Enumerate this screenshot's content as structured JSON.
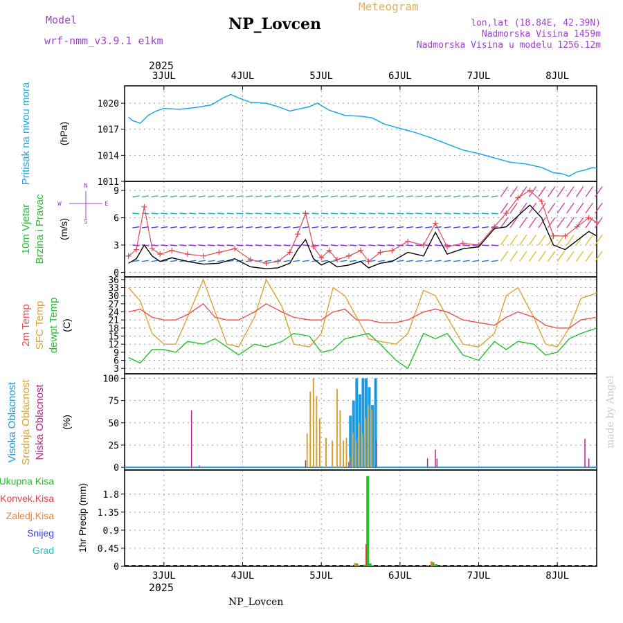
{
  "header": {
    "model_label": "Model",
    "model_name": "wrf-nmm_v3.9.1 e1km",
    "title": "NP_Lovcen",
    "subtitle": "Meteogram",
    "lonlat": "lon,lat (18.84E, 42.39N)",
    "elevation": "Nadmorska Visina 1459m",
    "model_elevation": "Nadmorska Visina u modelu 1256.12m",
    "footer": "NP_Lovcen",
    "watermark": "made by Angel"
  },
  "colors": {
    "pressure": "#1aa7e6",
    "wind_speed": "#000000",
    "wind_max": "#e0474f",
    "temp2m": "#e8504c",
    "sfc_temp": "#e0a030",
    "dewpt": "#22c02a",
    "cloud_high": "#1a9ae0",
    "cloud_mid": "#d8a030",
    "cloud_low": "#c0208a",
    "precip_total": "#22c02a",
    "precip_conv": "#e84040",
    "precip_frz": "#f08030",
    "snow": "#4040e0",
    "hail": "#20c0c0",
    "label_purple": "#a040d0",
    "label_orange": "#e0b060"
  },
  "chart_data": [
    {
      "type": "line",
      "panel": "pressure",
      "ylabel_line1": "Pritisak na nivou mora",
      "ylabel_line2": "(hPa)",
      "ylim": [
        1011,
        1022
      ],
      "yticks": [
        1011,
        1014,
        1017,
        1020
      ],
      "grid": true,
      "x_days": [
        2.55,
        2.6,
        2.7,
        2.8,
        2.9,
        3.0,
        3.2,
        3.4,
        3.6,
        3.75,
        3.85,
        3.95,
        4.1,
        4.3,
        4.45,
        4.6,
        4.75,
        4.85,
        4.95,
        5.1,
        5.3,
        5.5,
        5.65,
        5.8,
        6.0,
        6.2,
        6.4,
        6.6,
        6.8,
        7.0,
        7.2,
        7.4,
        7.6,
        7.8,
        7.95,
        8.05,
        8.15,
        8.25,
        8.35,
        8.45,
        8.5
      ],
      "series": [
        {
          "values": [
            1018.4,
            1018.0,
            1017.7,
            1018.6,
            1019.1,
            1019.4,
            1019.3,
            1019.5,
            1019.8,
            1020.6,
            1021.0,
            1020.6,
            1020.1,
            1020.0,
            1019.6,
            1019.1,
            1019.4,
            1019.6,
            1020.0,
            1019.2,
            1018.6,
            1018.5,
            1018.3,
            1017.6,
            1017.1,
            1016.6,
            1016.0,
            1015.3,
            1014.6,
            1014.2,
            1013.7,
            1013.2,
            1013.0,
            1012.6,
            1012.0,
            1011.9,
            1011.6,
            1012.1,
            1012.3,
            1012.6,
            1012.5
          ]
        }
      ]
    },
    {
      "type": "line",
      "panel": "wind",
      "ylabel_line1": "10m Vjetar",
      "ylabel_line2": "Brzina i Pravac",
      "unit": "(m/s)",
      "compass": {
        "n": "N",
        "w": "W",
        "e": "E",
        "s": "S"
      },
      "ylim": [
        -0.5,
        10
      ],
      "yticks": [
        0,
        3,
        6,
        9
      ],
      "grid": true,
      "x_days": [
        2.55,
        2.65,
        2.75,
        2.85,
        2.95,
        3.1,
        3.3,
        3.5,
        3.7,
        3.9,
        4.1,
        4.3,
        4.45,
        4.6,
        4.7,
        4.8,
        4.9,
        5.0,
        5.1,
        5.2,
        5.35,
        5.5,
        5.6,
        5.75,
        5.9,
        6.1,
        6.3,
        6.45,
        6.6,
        6.8,
        7.0,
        7.2,
        7.35,
        7.5,
        7.65,
        7.8,
        7.95,
        8.1,
        8.25,
        8.4,
        8.5
      ],
      "series": [
        {
          "name": "speed",
          "values": [
            1.0,
            1.5,
            3.0,
            1.8,
            1.2,
            1.6,
            1.2,
            0.9,
            1.0,
            1.5,
            0.6,
            0.4,
            0.5,
            1.0,
            2.5,
            3.6,
            1.5,
            0.8,
            1.2,
            0.6,
            0.8,
            1.2,
            0.5,
            1.0,
            1.2,
            2.2,
            1.8,
            4.4,
            2.0,
            2.6,
            2.8,
            4.8,
            5.0,
            6.2,
            7.4,
            6.0,
            3.0,
            2.5,
            3.5,
            4.5,
            4.0
          ]
        },
        {
          "name": "max",
          "values": [
            1.8,
            2.5,
            7.2,
            2.6,
            2.0,
            2.4,
            2.0,
            1.8,
            2.2,
            2.6,
            1.4,
            1.0,
            1.2,
            2.2,
            4.2,
            6.5,
            2.8,
            1.6,
            2.4,
            1.4,
            1.8,
            2.4,
            1.2,
            2.2,
            2.4,
            3.4,
            3.0,
            5.4,
            2.8,
            3.2,
            3.0,
            5.0,
            6.5,
            8.2,
            9.0,
            7.8,
            4.0,
            4.0,
            5.0,
            6.0,
            5.5
          ]
        }
      ]
    },
    {
      "type": "line",
      "panel": "temperature",
      "ylabel_line1": "2m Temp",
      "ylabel_line2": "SFC Temp",
      "ylabel_line3": "dewpt Temp",
      "unit": "(C)",
      "ylim": [
        1,
        37
      ],
      "yticks": [
        3,
        6,
        9,
        12,
        15,
        18,
        21,
        24,
        27,
        30,
        33,
        36
      ],
      "grid": true,
      "x_days": [
        2.55,
        2.7,
        2.85,
        3.0,
        3.15,
        3.3,
        3.5,
        3.65,
        3.8,
        3.95,
        4.15,
        4.3,
        4.5,
        4.65,
        4.85,
        5.0,
        5.15,
        5.3,
        5.45,
        5.6,
        5.75,
        5.95,
        6.1,
        6.3,
        6.45,
        6.6,
        6.8,
        7.0,
        7.2,
        7.35,
        7.5,
        7.7,
        7.85,
        8.0,
        8.15,
        8.3,
        8.5
      ],
      "series": [
        {
          "name": "2m",
          "values": [
            24,
            25,
            22,
            21,
            21,
            23,
            27,
            22,
            21,
            21,
            24,
            27,
            24,
            22,
            21,
            21,
            24,
            25,
            21,
            21,
            20,
            20,
            21,
            24,
            25,
            24,
            21,
            20,
            19,
            22,
            24,
            22,
            19,
            18,
            18,
            21,
            22
          ]
        },
        {
          "name": "sfc",
          "values": [
            33,
            28,
            16,
            12,
            12,
            22,
            36,
            24,
            12,
            11,
            22,
            36,
            26,
            12,
            11,
            16,
            33,
            30,
            22,
            14,
            13,
            12,
            16,
            32,
            30,
            22,
            12,
            11,
            16,
            30,
            33,
            22,
            12,
            11,
            18,
            29,
            31
          ]
        },
        {
          "name": "dewpt",
          "values": [
            7,
            5,
            10,
            10,
            9,
            13,
            12,
            14,
            11,
            8,
            12,
            11,
            13,
            16,
            15,
            9,
            10,
            14,
            15,
            16,
            12,
            6,
            3,
            16,
            14,
            16,
            8,
            6,
            13,
            10,
            13,
            12,
            8,
            9,
            14,
            16,
            18
          ]
        }
      ]
    },
    {
      "type": "bar",
      "panel": "clouds",
      "ylabel_line1": "Visoka Oblacnost",
      "ylabel_line2": "Srednja Oblacnost",
      "ylabel_line3": "Niska Oblacnost",
      "unit": "(%)",
      "ylim": [
        -3,
        105
      ],
      "yticks": [
        0,
        25,
        50,
        75,
        100
      ],
      "grid": true,
      "series": [
        {
          "name": "high",
          "x_days": [
            5.37,
            5.41,
            5.45,
            5.49,
            5.53,
            5.57,
            5.61,
            5.65,
            5.69
          ],
          "values": [
            58,
            75,
            100,
            82,
            100,
            100,
            90,
            70,
            100
          ]
        },
        {
          "name": "mid",
          "x_days": [
            4.82,
            4.86,
            4.9,
            4.94,
            4.98,
            5.06,
            5.14,
            5.2,
            5.24,
            5.28,
            5.32,
            5.36,
            5.4,
            5.44,
            5.48,
            5.52,
            5.56,
            5.6,
            5.64
          ],
          "values": [
            38,
            85,
            100,
            80,
            55,
            33,
            30,
            88,
            64,
            30,
            33,
            12,
            38,
            30,
            50,
            38,
            56,
            70,
            65
          ]
        },
        {
          "name": "low",
          "x_days": [
            3.35,
            3.45,
            4.8,
            5.35,
            5.7,
            6.35,
            6.45,
            6.47,
            8.35,
            8.4
          ],
          "values": [
            64,
            2,
            8,
            6,
            30,
            10,
            20,
            10,
            32,
            10
          ]
        }
      ]
    },
    {
      "type": "bar",
      "panel": "precip",
      "legend": [
        "Ukupna Kisa",
        "Konvek.Kisa",
        "Zaledj.Kisa",
        "Snijeg",
        "Grad"
      ],
      "ylabel": "1hr Precip (mm)",
      "ylim": [
        0,
        2.4
      ],
      "yticks": [
        "0",
        "0.45",
        "0.9",
        "1.35",
        "1.8"
      ],
      "grid": true,
      "series": [
        {
          "name": "Ukupna Kisa",
          "x_days": [
            5.45,
            5.55,
            5.59,
            5.62,
            6.42,
            6.46
          ],
          "values": [
            0.07,
            0.04,
            2.25,
            0.07,
            0.1,
            0.05
          ]
        },
        {
          "name": "Konvek.Kisa",
          "x_days": [
            5.57
          ],
          "values": [
            0.55
          ]
        },
        {
          "name": "Zaledj.Kisa",
          "x_days": [
            5.43,
            6.4
          ],
          "values": [
            0.08,
            0.12
          ]
        }
      ]
    }
  ],
  "xaxis": {
    "year": "2025",
    "day_labels": [
      "3JUL",
      "4JUL",
      "5JUL",
      "6JUL",
      "7JUL",
      "8JUL"
    ],
    "day_positions": [
      3,
      4,
      5,
      6,
      7,
      8
    ],
    "xlim": [
      2.5,
      8.5
    ]
  }
}
